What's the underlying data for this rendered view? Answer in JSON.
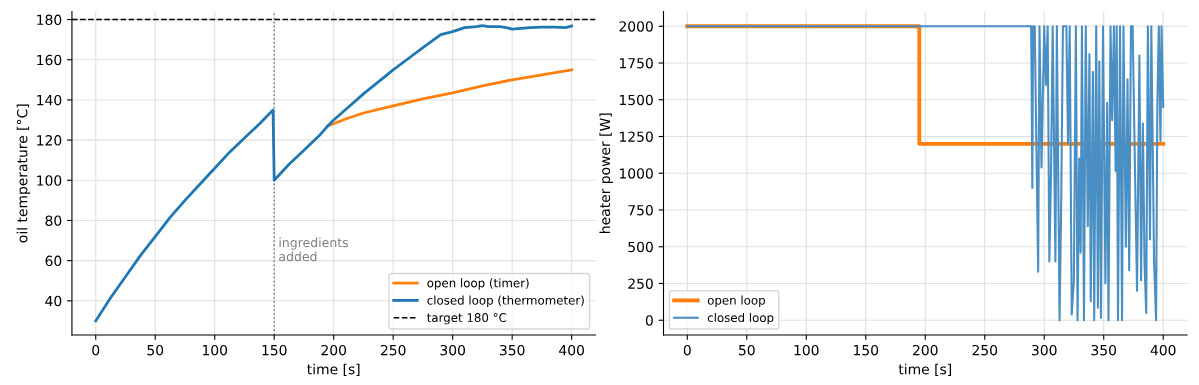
{
  "chart_data": [
    {
      "type": "line",
      "xlabel": "time [s]",
      "ylabel": "oil temperature [°C]",
      "xlim": [
        -20,
        420
      ],
      "ylim": [
        23,
        184
      ],
      "xticks": [
        0,
        50,
        100,
        150,
        200,
        250,
        300,
        350,
        400
      ],
      "yticks": [
        40,
        60,
        80,
        100,
        120,
        140,
        160,
        180
      ],
      "grid": true,
      "legend": "bottom right",
      "line_style": "solid",
      "marker": "none",
      "series": [
        {
          "name": "open loop (timer)",
          "color": "#ff7f0e",
          "x": [
            195,
            210,
            225,
            250,
            275,
            300,
            325,
            350,
            375,
            400
          ],
          "values": [
            127,
            130.5,
            133.5,
            137,
            140.5,
            143.5,
            147,
            150,
            152.5,
            155
          ]
        },
        {
          "name": "closed loop (thermometer)",
          "color": "#1f77b4",
          "x": [
            0,
            12.5,
            25,
            37.5,
            50,
            62.5,
            75,
            87.5,
            100,
            112.5,
            125,
            137.5,
            149,
            150,
            162.5,
            175,
            187.5,
            195,
            200,
            212.5,
            225,
            237.5,
            250,
            262.5,
            275,
            290,
            300,
            310,
            320,
            325,
            330,
            340,
            345,
            350,
            355,
            365,
            375,
            385,
            395,
            400
          ],
          "values": [
            30,
            41.5,
            52,
            62.5,
            72,
            81.5,
            90,
            98,
            106,
            114,
            121,
            128,
            135,
            100,
            108,
            115,
            122,
            127,
            130,
            136.5,
            143,
            149,
            155,
            160.5,
            166,
            172.5,
            174,
            176,
            176.5,
            177,
            176.5,
            176.5,
            176,
            175.3,
            175.5,
            176,
            176.2,
            176.3,
            176,
            176.8
          ]
        }
      ],
      "ref_lines": [
        {
          "axis": "y",
          "value": 180,
          "label": "target 180 °C",
          "color": "#000000",
          "line_style": "dashed"
        },
        {
          "axis": "x",
          "value": 150,
          "color": "#808080",
          "line_style": "dotted"
        }
      ],
      "annotations": [
        {
          "text": "ingredients\nadded",
          "x": 150,
          "y": 65
        }
      ]
    },
    {
      "type": "line",
      "xlabel": "time [s]",
      "ylabel": "heater power [W]",
      "xlim": [
        -20,
        420
      ],
      "ylim": [
        -100,
        2100
      ],
      "xticks": [
        0,
        50,
        100,
        150,
        200,
        250,
        300,
        350,
        400
      ],
      "yticks": [
        0,
        250,
        500,
        750,
        1000,
        1250,
        1500,
        1750,
        2000
      ],
      "grid": true,
      "legend": "bottom left",
      "line_style": "solid",
      "marker": "none",
      "series": [
        {
          "name": "open loop",
          "color": "#ff7f0e",
          "x": [
            0,
            195,
            195,
            400
          ],
          "values": [
            2000,
            2000,
            1200,
            1200
          ]
        },
        {
          "name": "closed loop",
          "color": "#4a8fc3",
          "x": [
            0,
            289,
            289.4,
            290,
            290.6,
            292,
            294.9,
            296,
            297.7,
            300,
            301.4,
            302.9,
            304.3,
            305.7,
            307.1,
            309.4,
            310.6,
            312.9,
            314.3,
            315.7,
            318.6,
            320,
            321.4,
            323.1,
            324.9,
            326.6,
            328,
            329.4,
            330.6,
            331.7,
            333.4,
            334.9,
            336.6,
            338,
            339.1,
            340.9,
            342,
            343.7,
            345.1,
            346.3,
            347.7,
            349.4,
            351.4,
            352.9,
            354,
            355.7,
            357.1,
            358.6,
            360,
            360.9,
            362,
            363.7,
            365.4,
            366.6,
            368.6,
            370,
            371.4,
            372.9,
            374.3,
            376.3,
            378,
            380,
            381.4,
            382.9,
            384.3,
            385.7,
            387.1,
            388.9,
            390,
            392.3,
            394,
            395.1,
            396.3,
            397.7,
            398.6,
            400
          ],
          "values": [
            2000,
            2000,
            1620,
            900,
            2000,
            2000,
            330,
            2000,
            1040,
            2000,
            1600,
            2000,
            400,
            1000,
            2000,
            400,
            2000,
            0,
            830,
            2000,
            2000,
            1200,
            2000,
            40,
            270,
            2000,
            0,
            1100,
            460,
            2000,
            0,
            2000,
            640,
            1810,
            130,
            1690,
            0,
            2000,
            85,
            1760,
            15,
            2000,
            250,
            1480,
            0,
            2000,
            1360,
            2000,
            1015,
            2000,
            0,
            2000,
            0,
            2000,
            500,
            1640,
            340,
            2000,
            2000,
            1010,
            200,
            1800,
            270,
            1340,
            390,
            50,
            2000,
            550,
            2000,
            400,
            0,
            1480,
            2000,
            1220,
            2000,
            1450
          ]
        }
      ]
    }
  ]
}
